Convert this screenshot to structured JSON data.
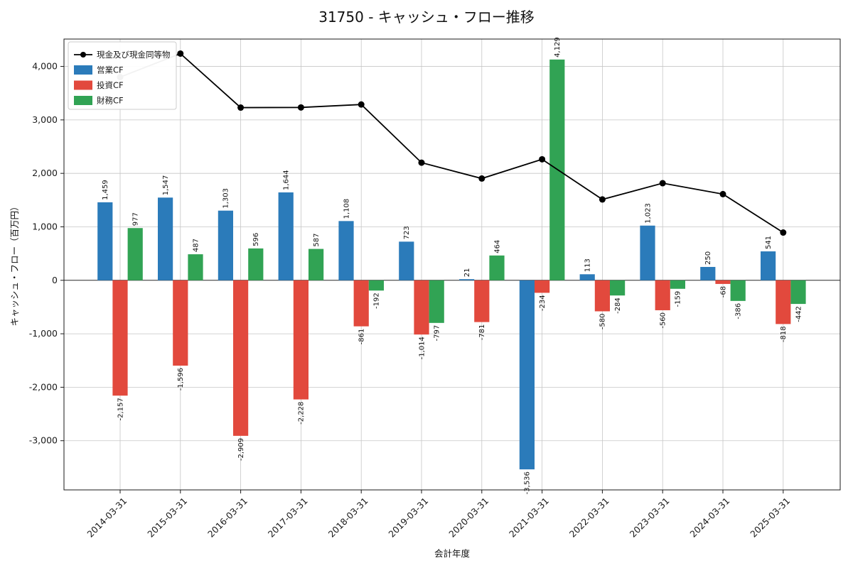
{
  "chart_data": {
    "type": "bar",
    "title": "31750 - キャッシュ・フロー推移",
    "xlabel": "会計年度",
    "ylabel": "キャッシュ・フロー（百万円）",
    "categories": [
      "2014-03-31",
      "2015-03-31",
      "2016-03-31",
      "2017-03-31",
      "2018-03-31",
      "2019-03-31",
      "2020-03-31",
      "2021-03-31",
      "2022-03-31",
      "2023-03-31",
      "2024-03-31",
      "2025-03-31"
    ],
    "series": [
      {
        "name": "営業CF",
        "kind": "bar",
        "color": "#2b7bba",
        "values": [
          1459,
          1547,
          1303,
          1644,
          1108,
          723,
          21,
          -3536,
          113,
          1023,
          250,
          541
        ]
      },
      {
        "name": "投資CF",
        "kind": "bar",
        "color": "#e2493d",
        "values": [
          -2157,
          -1596,
          -2909,
          -2228,
          -861,
          -1014,
          -781,
          -234,
          -580,
          -560,
          -68,
          -818
        ]
      },
      {
        "name": "財務CF",
        "kind": "bar",
        "color": "#31a354",
        "values": [
          977,
          487,
          596,
          587,
          -192,
          -797,
          464,
          4129,
          -284,
          -159,
          -386,
          -442
        ]
      },
      {
        "name": "現金及び現金同等物",
        "kind": "line",
        "color": "#000000",
        "values": [
          3800,
          4240,
          3230,
          3233,
          3288,
          2200,
          1904,
          2263,
          1512,
          1816,
          1612,
          893
        ]
      }
    ],
    "ylim": [
      -3920,
      4512
    ],
    "yticks": [
      -3000,
      -2000,
      -1000,
      0,
      1000,
      2000,
      3000,
      4000
    ],
    "grid": true,
    "legend_position": "upper left",
    "bar_value_labels": "rotated-90",
    "line_color": "#000000",
    "background": "#ffffff"
  }
}
